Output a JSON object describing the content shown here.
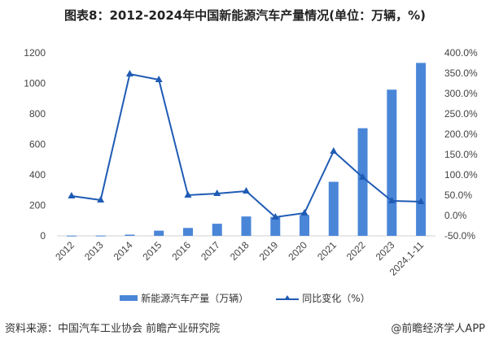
{
  "title": "图表8：2012-2024年中国新能源汽车产量情况(单位：万辆，%)",
  "source": "资料来源：中国汽车工业协会 前瞻产业研究院",
  "brand": "@前瞻经济学人APP",
  "colors": {
    "bar": "#4a86d8",
    "line": "#1f5bb4"
  },
  "legend": {
    "bar_label": "新能源汽车产量（万辆）",
    "line_label": "同比变化（%）"
  },
  "chart_data": {
    "type": "bar",
    "title": "图表8：2012-2024年中国新能源汽车产量情况(单位：万辆，%)",
    "categories": [
      "2012",
      "2013",
      "2014",
      "2015",
      "2016",
      "2017",
      "2018",
      "2019",
      "2020",
      "2021",
      "2022",
      "2023",
      "2024.1-11"
    ],
    "series": [
      {
        "name": "新能源汽车产量（万辆）",
        "type": "bar",
        "axis": "left",
        "values": [
          1.3,
          1.8,
          7.9,
          34.0,
          51.7,
          79.4,
          127.0,
          124.2,
          136.6,
          354.5,
          705.8,
          958.7,
          1134.0
        ]
      },
      {
        "name": "同比变化（%）",
        "type": "line",
        "axis": "right",
        "values": [
          48,
          38,
          348,
          334,
          50,
          54,
          60,
          -4,
          6,
          158,
          94,
          36,
          34
        ]
      }
    ],
    "left_axis": {
      "ticks": [
        "0",
        "200",
        "400",
        "600",
        "800",
        "1000",
        "1200"
      ],
      "range": [
        0,
        1200
      ]
    },
    "right_axis": {
      "ticks": [
        "-50.0%",
        "0.0%",
        "50.0%",
        "100.0%",
        "150.0%",
        "200.0%",
        "250.0%",
        "300.0%",
        "350.0%",
        "400.0%"
      ],
      "range": [
        -50,
        400
      ]
    },
    "xlabel": "",
    "ylabel": "",
    "legend_position": "bottom",
    "grid": false
  }
}
